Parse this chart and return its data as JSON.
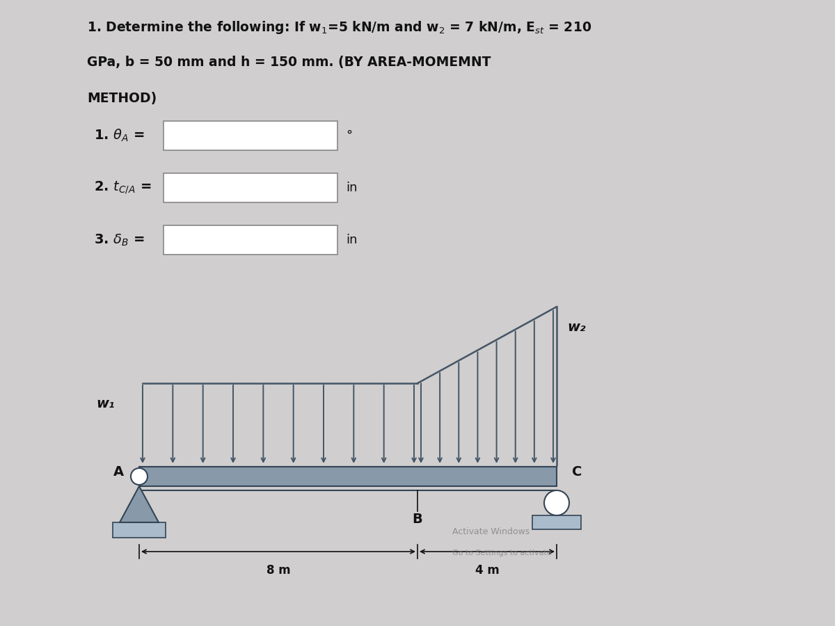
{
  "bg_color": "#d0cece",
  "title_line1": "1. Determine the following: If w₁=5 kN/m and w₂ = 7 kN/m, E",
  "title_line1b": "st",
  "title_line1c": " = 210",
  "title_line2": "GPa, b = 50 mm and h = 150 mm. (BY AREA-MOMEMNT",
  "title_line3": "METHOD)",
  "label1": "1. θ",
  "label1sub": "A",
  "label1end": " =",
  "label1unit": "°",
  "label2": "2. t",
  "label2sub": "C",
  "label2subsub": "A",
  "label2end": " =",
  "label2unit": "in",
  "label3": "3. δ",
  "label3sub": "B",
  "label3end": " =",
  "label3unit": "in",
  "beam_color": "#8899aa",
  "load_color": "#445566",
  "text_color": "#111111",
  "box_color": "#ffffff",
  "box_edge_color": "#888888",
  "w1_label": "w₁",
  "w2_label": "w₂",
  "A_label": "A",
  "B_label": "B",
  "C_label": "C",
  "dim1": "8 m",
  "dim2": "4 m"
}
